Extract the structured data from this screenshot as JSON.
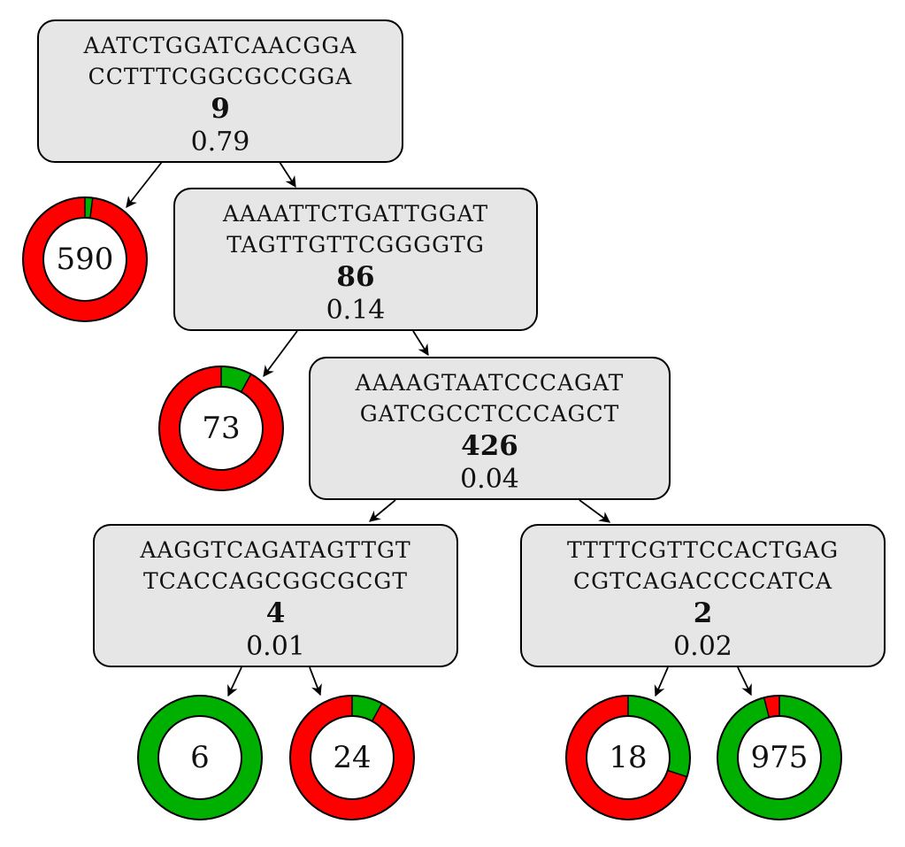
{
  "colors": {
    "positive": "#00b000",
    "negative": "#ff0000",
    "box_fill": "#e6e6e6",
    "stroke": "#000000"
  },
  "tree": {
    "nodes": [
      {
        "id": "n1",
        "seq1": "AATCTGGATCAACGGA",
        "seq2": "CCTTTCGGCGCCGGA",
        "count": "9",
        "score": "0.79"
      },
      {
        "id": "n2",
        "seq1": "AAAATTCTGATTGGAT",
        "seq2": "TAGTTGTTCGGGGTG",
        "count": "86",
        "score": "0.14"
      },
      {
        "id": "n3",
        "seq1": "AAAAGTAATCCCAGAT",
        "seq2": "GATCGCCTCCCAGCT",
        "count": "426",
        "score": "0.04"
      },
      {
        "id": "n4",
        "seq1": "AAGGTCAGATAGTTGT",
        "seq2": "TCACCAGCGGCGCGT",
        "count": "4",
        "score": "0.01"
      },
      {
        "id": "n5",
        "seq1": "TTTTCGTTCCACTGAG",
        "seq2": "CGTCAGACCCCATCA",
        "count": "2",
        "score": "0.02"
      }
    ],
    "leaves": [
      {
        "id": "l1",
        "label": "590",
        "green_fraction": 0.02
      },
      {
        "id": "l2",
        "label": "73",
        "green_fraction": 0.08
      },
      {
        "id": "l3",
        "label": "6",
        "green_fraction": 1.0
      },
      {
        "id": "l4",
        "label": "24",
        "green_fraction": 0.08
      },
      {
        "id": "l5",
        "label": "18",
        "green_fraction": 0.3
      },
      {
        "id": "l6",
        "label": "975",
        "green_fraction": 0.96
      }
    ]
  }
}
